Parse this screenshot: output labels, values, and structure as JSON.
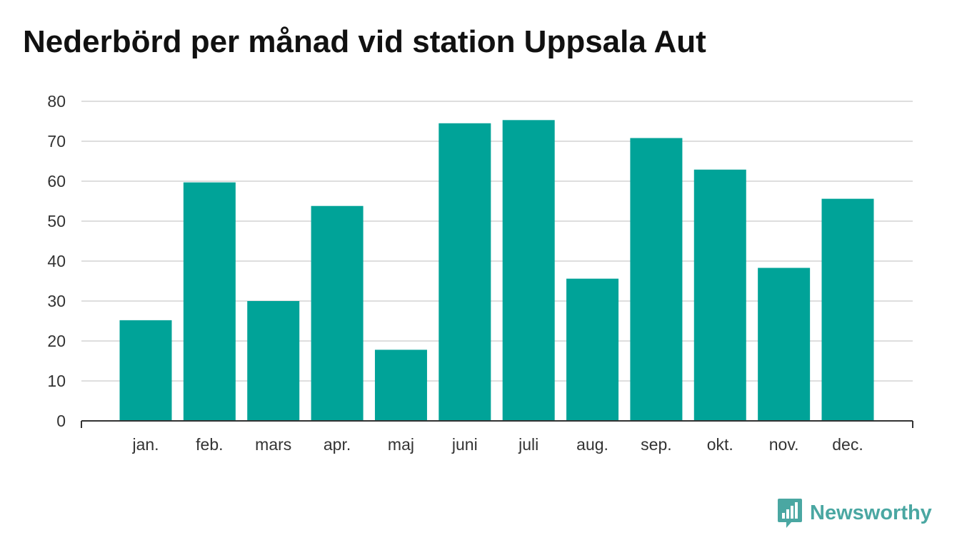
{
  "title": "Nederbörd per månad vid station Uppsala Aut",
  "brand": {
    "name": "Newsworthy",
    "icon": "bar-chart-speech-bubble-icon",
    "color": "#4aa7a2"
  },
  "chart_data": {
    "type": "bar",
    "title": "Nederbörd per månad vid station Uppsala Aut",
    "xlabel": "",
    "ylabel": "",
    "categories": [
      "jan.",
      "feb.",
      "mars",
      "apr.",
      "maj",
      "juni",
      "juli",
      "aug.",
      "sep.",
      "okt.",
      "nov.",
      "dec."
    ],
    "values": [
      25.2,
      59.7,
      30.0,
      53.8,
      17.8,
      74.5,
      75.3,
      35.6,
      70.8,
      62.9,
      38.3,
      55.6
    ],
    "ylim": [
      0,
      80
    ],
    "yticks": [
      0,
      10,
      20,
      30,
      40,
      50,
      60,
      70,
      80
    ],
    "grid": true,
    "legend": "none",
    "bar_color": "#00a398"
  }
}
